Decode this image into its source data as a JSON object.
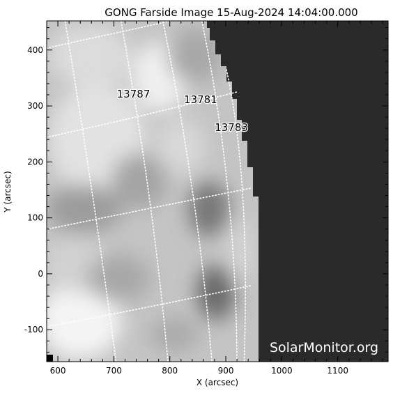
{
  "title": "GONG Farside Image 15-Aug-2024 14:04:00.000",
  "watermark": "SolarMonitor.org",
  "xlabel": "X (arcsec)",
  "ylabel": "Y (arcsec)",
  "xlim": [
    580,
    1190
  ],
  "ylim": [
    -157,
    452
  ],
  "x_ticks": [
    "600",
    "700",
    "800",
    "900",
    "1000",
    "1100"
  ],
  "y_ticks": [
    "-100",
    "0",
    "100",
    "200",
    "300",
    "400"
  ],
  "regions": [
    {
      "number": "13787",
      "x": 735,
      "y": 315
    },
    {
      "number": "13781",
      "x": 855,
      "y": 305
    },
    {
      "number": "13783",
      "x": 910,
      "y": 255
    }
  ],
  "colors": {
    "background": "#ffffff",
    "off_disk": "#2a2a2a",
    "grid": "#ffffff",
    "text": "#000000"
  }
}
